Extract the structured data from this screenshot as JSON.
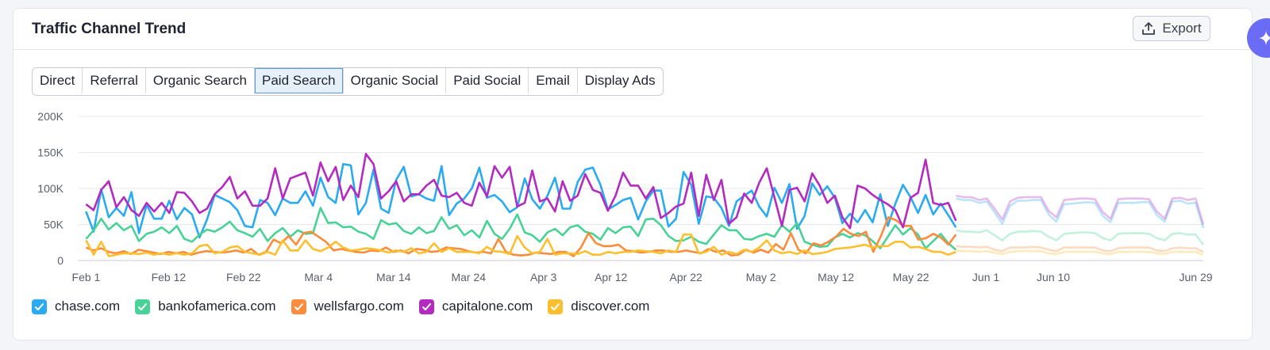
{
  "card": {
    "title": "Traffic Channel Trend",
    "export_label": "Export"
  },
  "tabs": [
    {
      "label": "Direct",
      "active": false
    },
    {
      "label": "Referral",
      "active": false
    },
    {
      "label": "Organic Search",
      "active": false
    },
    {
      "label": "Paid Search",
      "active": true
    },
    {
      "label": "Organic Social",
      "active": false
    },
    {
      "label": "Paid Social",
      "active": false
    },
    {
      "label": "Email",
      "active": false
    },
    {
      "label": "Display Ads",
      "active": false
    }
  ],
  "chart_data": {
    "type": "line",
    "title": "",
    "xlabel": "",
    "ylabel": "",
    "ylim": [
      0,
      200000
    ],
    "y_ticks": [
      "0",
      "50K",
      "100K",
      "150K",
      "200K"
    ],
    "x_tick_labels": [
      {
        "label": "Feb 1",
        "date": "2025-02-01"
      },
      {
        "label": "Feb 12",
        "date": "2025-02-12"
      },
      {
        "label": "Feb 22",
        "date": "2025-02-22"
      },
      {
        "label": "Mar 4",
        "date": "2025-03-04"
      },
      {
        "label": "Mar 14",
        "date": "2025-03-14"
      },
      {
        "label": "Mar 24",
        "date": "2025-03-24"
      },
      {
        "label": "Apr 3",
        "date": "2025-04-03"
      },
      {
        "label": "Apr 12",
        "date": "2025-04-12"
      },
      {
        "label": "Apr 22",
        "date": "2025-04-22"
      },
      {
        "label": "May 2",
        "date": "2025-05-02"
      },
      {
        "label": "May 12",
        "date": "2025-05-12"
      },
      {
        "label": "May 22",
        "date": "2025-05-22"
      },
      {
        "label": "Jun 1",
        "date": "2025-06-01"
      },
      {
        "label": "Jun 10",
        "date": "2025-06-10"
      },
      {
        "label": "Jun 29",
        "date": "2025-06-29"
      }
    ],
    "x_start": "2025-01-31",
    "x_end": "2025-06-30",
    "forecast_start": "2025-05-28",
    "grid": true,
    "legend_position": "bottom-left",
    "series": [
      {
        "name": "chase.com",
        "color": "#2aaaf0",
        "actual": [
          68000,
          40000,
          99000,
          60000,
          73000,
          62000,
          95000,
          38000,
          77000,
          58000,
          58000,
          83000,
          57000,
          73000,
          64000,
          32000,
          57000,
          91000,
          86000,
          81000,
          70000,
          48000,
          46000,
          84000,
          80000,
          63000,
          86000,
          80000,
          80000,
          96000,
          76000,
          115000,
          88000,
          80000,
          134000,
          132000,
          64000,
          80000,
          126000,
          72000,
          66000,
          112000,
          130000,
          89000,
          92000,
          86000,
          83000,
          131000,
          63000,
          79000,
          86000,
          100000,
          129000,
          87000,
          91000,
          82000,
          67000,
          74000,
          114000,
          85000,
          72000,
          90000,
          115000,
          72000,
          72000,
          109000,
          126000,
          129000,
          105000,
          71000,
          77000,
          84000,
          87000,
          57000,
          82000,
          97000,
          97000,
          47000,
          58000,
          123000,
          105000,
          51000,
          89000,
          87000,
          73000,
          48000,
          82000,
          90000,
          97000,
          75000,
          61000,
          101000,
          80000,
          106000,
          44000,
          62000,
          107000,
          91000,
          103000,
          87000,
          52000,
          65000,
          53000,
          70000,
          53000,
          92000,
          48000,
          79000,
          105000,
          88000,
          66000,
          91000,
          64000,
          79000,
          63000,
          46000
        ],
        "forecast": [
          86000,
          84000,
          84000,
          80000,
          82000,
          67000,
          51000,
          76000,
          83000,
          83000,
          84000,
          84000,
          64000,
          54000,
          78000,
          79000,
          80000,
          81000,
          80000,
          62000,
          53000,
          80000,
          80000,
          80000,
          81000,
          81000,
          63000,
          54000,
          82000,
          83000,
          79000,
          80000,
          45000
        ]
      },
      {
        "name": "bankofamerica.com",
        "color": "#49d296",
        "actual": [
          30000,
          42000,
          58000,
          43000,
          52000,
          42000,
          48000,
          27000,
          37000,
          40000,
          46000,
          38000,
          48000,
          30000,
          26000,
          36000,
          43000,
          40000,
          46000,
          54000,
          42000,
          38000,
          33000,
          44000,
          27000,
          38000,
          45000,
          33000,
          42000,
          37000,
          38000,
          73000,
          52000,
          53000,
          46000,
          47000,
          40000,
          37000,
          30000,
          56000,
          50000,
          52000,
          41000,
          37000,
          46000,
          38000,
          41000,
          60000,
          44000,
          49000,
          35000,
          42000,
          32000,
          55000,
          37000,
          30000,
          44000,
          64000,
          39000,
          35000,
          26000,
          39000,
          44000,
          35000,
          46000,
          49000,
          40000,
          37000,
          29000,
          45000,
          38000,
          46000,
          47000,
          34000,
          57000,
          58000,
          49000,
          34000,
          27000,
          28000,
          33000,
          26000,
          23000,
          36000,
          49000,
          42000,
          42000,
          30000,
          29000,
          34000,
          37000,
          33000,
          49000,
          40000,
          52000,
          26000,
          22000,
          19000,
          20000,
          32000,
          37000,
          32000,
          38000,
          35000,
          27000,
          17000,
          33000,
          49000,
          36000,
          45000,
          36000,
          17000,
          27000,
          37000,
          24000,
          15000
        ],
        "forecast": [
          42000,
          40000,
          40000,
          39000,
          42000,
          35000,
          28000,
          37000,
          40000,
          40000,
          41000,
          40000,
          33000,
          28000,
          37000,
          38000,
          39000,
          39000,
          38000,
          31000,
          28000,
          37000,
          38000,
          38000,
          38000,
          37000,
          31000,
          28000,
          37000,
          38000,
          36000,
          36000,
          22000
        ]
      },
      {
        "name": "wellsfargo.com",
        "color": "#fb8c3c",
        "actual": [
          18000,
          14000,
          17000,
          12000,
          10000,
          13000,
          9000,
          15000,
          13000,
          11000,
          9000,
          12000,
          10000,
          12000,
          8000,
          11000,
          13000,
          12000,
          11000,
          12000,
          14000,
          11000,
          16000,
          8000,
          12000,
          29000,
          24000,
          34000,
          22000,
          38000,
          40000,
          33000,
          26000,
          14000,
          16000,
          14000,
          12000,
          11000,
          14000,
          13000,
          18000,
          12000,
          14000,
          10000,
          16000,
          15000,
          12000,
          13000,
          18000,
          17000,
          16000,
          13000,
          11000,
          12000,
          10000,
          30000,
          12000,
          8000,
          7000,
          8000,
          11000,
          10000,
          9000,
          12000,
          12000,
          6000,
          18000,
          38000,
          24000,
          20000,
          20000,
          22000,
          14000,
          13000,
          11000,
          12000,
          14000,
          14000,
          12000,
          12000,
          14000,
          12000,
          10000,
          16000,
          12000,
          14000,
          7000,
          8000,
          15000,
          11000,
          15000,
          11000,
          23000,
          15000,
          38000,
          15000,
          10000,
          24000,
          21000,
          26000,
          33000,
          44000,
          37000,
          34000,
          40000,
          12000,
          34000,
          60000,
          56000,
          48000,
          48000,
          29000,
          31000,
          37000,
          32000,
          22000,
          36000
        ],
        "forecast": [
          20000,
          19000,
          19000,
          18000,
          19000,
          15000,
          13000,
          18000,
          18000,
          18000,
          19000,
          18000,
          15000,
          13000,
          18000,
          18000,
          18000,
          18000,
          18000,
          14000,
          13000,
          17000,
          18000,
          18000,
          18000,
          18000,
          14000,
          13000,
          17000,
          18000,
          17000,
          17000,
          12000
        ]
      },
      {
        "name": "capitalone.com",
        "color": "#b32bc1",
        "actual": [
          78000,
          70000,
          98000,
          110000,
          74000,
          88000,
          70000,
          62000,
          80000,
          68000,
          80000,
          66000,
          95000,
          94000,
          82000,
          66000,
          72000,
          92000,
          102000,
          116000,
          86000,
          96000,
          76000,
          76000,
          86000,
          128000,
          86000,
          114000,
          118000,
          122000,
          90000,
          136000,
          110000,
          130000,
          84000,
          104000,
          88000,
          148000,
          134000,
          86000,
          96000,
          110000,
          82000,
          92000,
          92000,
          104000,
          112000,
          90000,
          88000,
          94000,
          80000,
          76000,
          108000,
          89000,
          131000,
          115000,
          130000,
          75000,
          80000,
          125000,
          82000,
          86000,
          68000,
          110000,
          83000,
          90000,
          120000,
          98000,
          94000,
          69000,
          90000,
          122000,
          104000,
          104000,
          86000,
          102000,
          59000,
          66000,
          75000,
          79000,
          122000,
          62000,
          119000,
          84000,
          112000,
          51000,
          60000,
          93000,
          80000,
          108000,
          128000,
          88000,
          48000,
          98000,
          101000,
          82000,
          121000,
          104000,
          80000,
          90000,
          60000,
          45000,
          104000,
          100000,
          91000,
          84000,
          78000,
          70000,
          46000,
          87000,
          94000,
          140000,
          80000,
          77000,
          80000,
          55000
        ],
        "forecast": [
          90000,
          88000,
          88000,
          84000,
          86000,
          72000,
          57000,
          82000,
          87000,
          88000,
          88000,
          88000,
          69000,
          60000,
          84000,
          85000,
          86000,
          86000,
          85000,
          67000,
          58000,
          85000,
          86000,
          86000,
          86000,
          85000,
          68000,
          58000,
          86000,
          87000,
          84000,
          86000,
          50000
        ]
      },
      {
        "name": "discover.com",
        "color": "#fbbf2f",
        "actual": [
          28000,
          8000,
          26000,
          6000,
          8000,
          10000,
          10000,
          9000,
          11000,
          8000,
          10000,
          8000,
          10000,
          8000,
          10000,
          20000,
          22000,
          10000,
          12000,
          18000,
          20000,
          12000,
          10000,
          8000,
          12000,
          8000,
          28000,
          14000,
          14000,
          28000,
          16000,
          13000,
          18000,
          26000,
          18000,
          14000,
          15000,
          17000,
          16000,
          14000,
          11000,
          14000,
          12000,
          17000,
          10000,
          12000,
          24000,
          12000,
          17000,
          12000,
          12000,
          12000,
          10000,
          19000,
          13000,
          12000,
          9000,
          34000,
          18000,
          10000,
          12000,
          30000,
          8000,
          10000,
          10000,
          9000,
          13000,
          8000,
          8000,
          12000,
          10000,
          12000,
          12000,
          14000,
          13000,
          12000,
          10000,
          14000,
          12000,
          36000,
          36000,
          10000,
          12000,
          19000,
          8000,
          12000,
          9000,
          15000,
          12000,
          18000,
          28000,
          14000,
          10000,
          12000,
          9000,
          14000,
          9000,
          10000,
          12000,
          16000,
          17000,
          18000,
          20000,
          22000,
          18000,
          20000,
          20000,
          26000,
          26000,
          18000,
          19000,
          16000,
          12000,
          12000,
          8000,
          12000
        ],
        "forecast": [
          14000,
          13000,
          13000,
          12000,
          13000,
          11000,
          9000,
          12000,
          13000,
          13000,
          13000,
          13000,
          10000,
          9000,
          12000,
          12000,
          12000,
          12000,
          12000,
          10000,
          9000,
          12000,
          12000,
          12000,
          12000,
          12000,
          10000,
          9000,
          12000,
          12000,
          12000,
          12000,
          8000
        ]
      }
    ]
  }
}
